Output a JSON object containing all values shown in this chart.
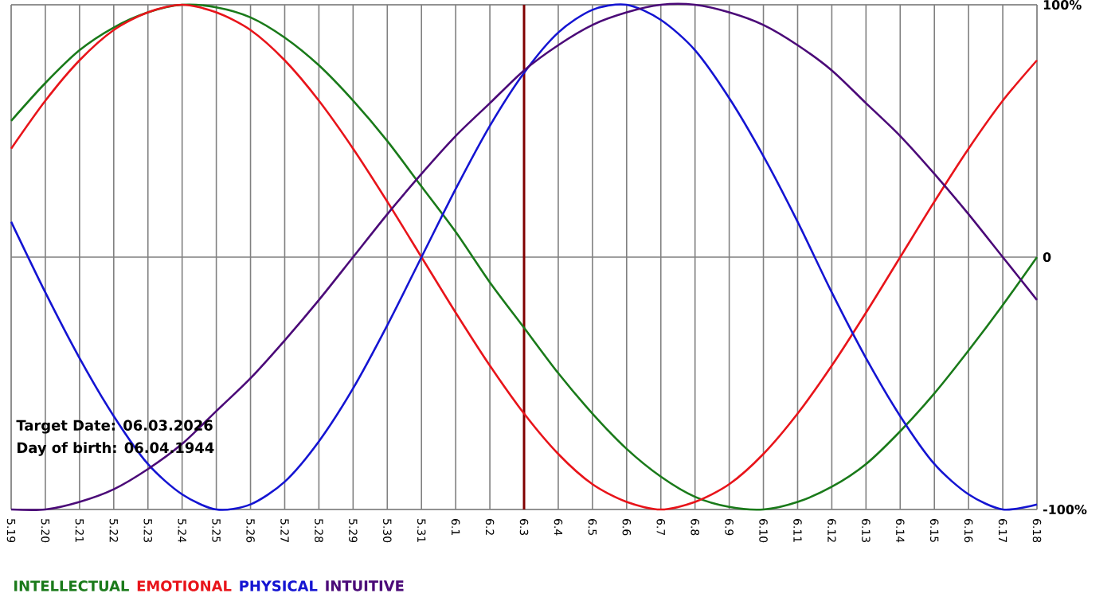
{
  "chart_data": {
    "type": "line",
    "categories": [
      "5.19",
      "5.20",
      "5.21",
      "5.22",
      "5.23",
      "5.24",
      "5.25",
      "5.26",
      "5.27",
      "5.28",
      "5.29",
      "5.30",
      "5.31",
      "6.1",
      "6.2",
      "6.3",
      "6.4",
      "6.5",
      "6.6",
      "6.7",
      "6.8",
      "6.9",
      "6.10",
      "6.11",
      "6.12",
      "6.13",
      "6.14",
      "6.15",
      "6.16",
      "6.17",
      "6.18"
    ],
    "series": [
      {
        "name": "INTELLECTUAL",
        "color": "#1a7a1a",
        "values": [
          54,
          69,
          82,
          91,
          97,
          100,
          99,
          95,
          87,
          76,
          62,
          46,
          28,
          10,
          -10,
          -28,
          -46,
          -62,
          -76,
          -87,
          -95,
          -99,
          -100,
          -97,
          -91,
          -82,
          -69,
          -54,
          -37,
          -19,
          0
        ]
      },
      {
        "name": "EMOTIONAL",
        "color": "#e8141a",
        "values": [
          43,
          62,
          78,
          90,
          97,
          100,
          97,
          90,
          78,
          62,
          43,
          22,
          0,
          -22,
          -43,
          -62,
          -78,
          -90,
          -97,
          -100,
          -97,
          -90,
          -78,
          -62,
          -43,
          -22,
          0,
          22,
          43,
          62,
          78
        ]
      },
      {
        "name": "PHYSICAL",
        "color": "#1414d2",
        "values": [
          14,
          -14,
          -40,
          -63,
          -82,
          -94,
          -100,
          -98,
          -89,
          -73,
          -52,
          -27,
          0,
          27,
          52,
          73,
          89,
          98,
          100,
          94,
          82,
          63,
          40,
          14,
          -14,
          -40,
          -63,
          -82,
          -94,
          -100,
          -98
        ]
      },
      {
        "name": "INTUITIVE",
        "color": "#4b0a78",
        "values": [
          -100,
          -100,
          -97,
          -92,
          -84,
          -74,
          -61,
          -48,
          -33,
          -17,
          0,
          17,
          33,
          48,
          61,
          74,
          84,
          92,
          97,
          100,
          100,
          97,
          92,
          84,
          74,
          61,
          48,
          33,
          17,
          0,
          -17
        ]
      }
    ],
    "ylim": [
      -100,
      100
    ],
    "yticks": [
      {
        "value": 100,
        "label": "100%"
      },
      0,
      {
        "value": -100,
        "label": "-100%"
      }
    ],
    "grid": true,
    "legend": "bottom",
    "ref_lines": [
      {
        "axis": "x",
        "value": "6.3",
        "color": "#800000"
      }
    ],
    "annotations": [
      "Target Date: 06.03.2026",
      "Day of birth: 06.04.1944"
    ]
  }
}
